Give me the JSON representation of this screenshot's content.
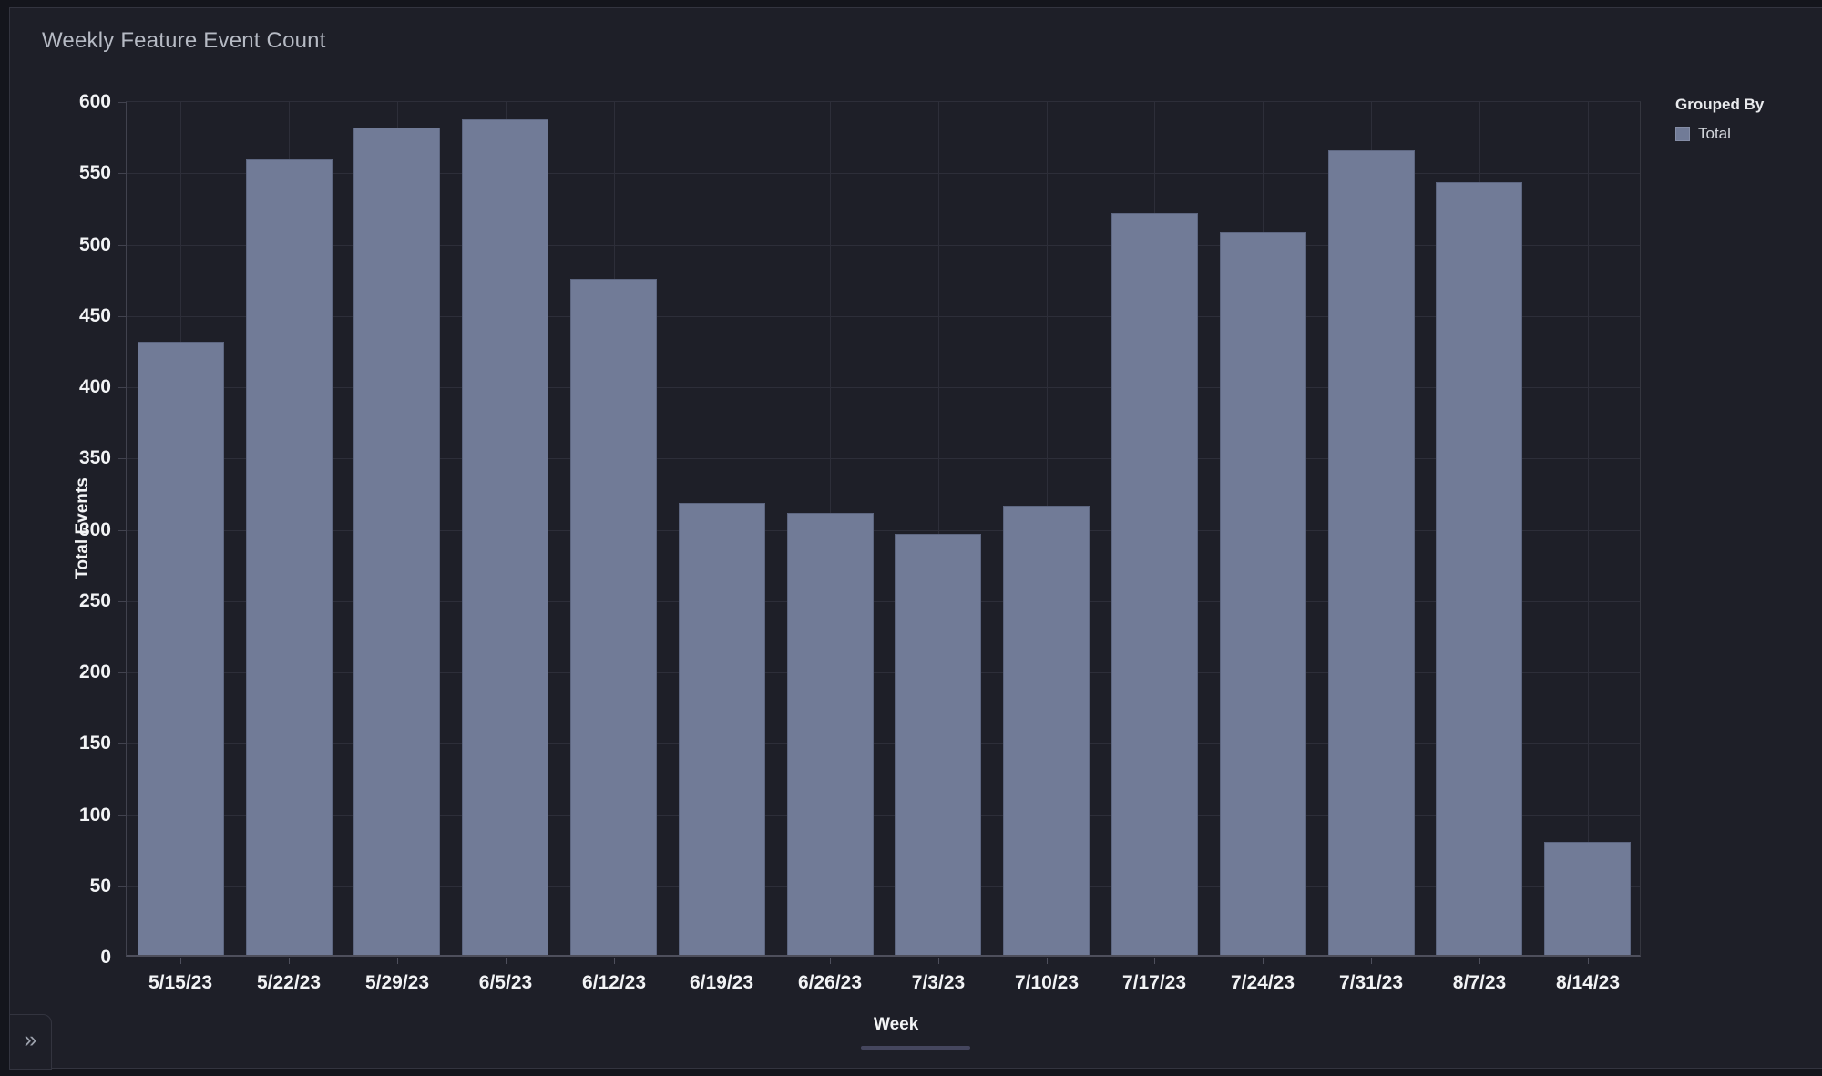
{
  "chart": {
    "title": "Weekly Feature Event Count"
  },
  "legend": {
    "title": "Grouped By",
    "items": [
      {
        "label": "Total"
      }
    ]
  },
  "axes": {
    "y_title": "Total Events",
    "x_title": "Week"
  },
  "controls": {
    "expand_icon": "»"
  },
  "chart_data": {
    "type": "bar",
    "title": "Weekly Feature Event Count",
    "xlabel": "Week",
    "ylabel": "Total Events",
    "categories": [
      "5/15/23",
      "5/22/23",
      "5/29/23",
      "6/5/23",
      "6/12/23",
      "6/19/23",
      "6/26/23",
      "7/3/23",
      "7/10/23",
      "7/17/23",
      "7/24/23",
      "7/31/23",
      "8/7/23",
      "8/14/23"
    ],
    "series": [
      {
        "name": "Total",
        "values": [
          430,
          558,
          580,
          586,
          474,
          317,
          310,
          295,
          315,
          520,
          507,
          564,
          542,
          79
        ]
      }
    ],
    "ylim": [
      0,
      600
    ],
    "ytick_step": 50,
    "grid": true,
    "legend_position": "right",
    "colors": {
      "bar_fill": "#717B97",
      "bar_border": "#5D6680",
      "gridline": "#2D2E39",
      "axis_line": "#4E4F5C",
      "plot_border": "#3A3B48",
      "card_background": "#1E1F28",
      "page_background": "#14151C",
      "tick_text": "#F2F3F5",
      "title_text": "#B6BAC4"
    }
  }
}
